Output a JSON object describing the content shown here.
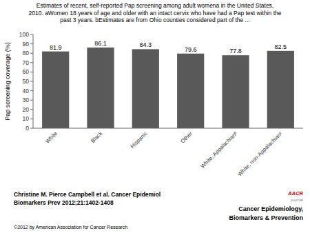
{
  "chart_data": {
    "type": "bar",
    "title": [
      "Estimates of recent, self-reported Pap screening among adult womena in the United States,",
      "2010. aWomen 18 years of age and older with an intact cervix who have had a Pap test within the",
      "past 3 years. bEstimates are from Ohio counties considered part of the ..."
    ],
    "categories": [
      "White",
      "Black",
      "Hispanic",
      "Other",
      "White, Appalachianᵇ",
      "White, non-Appalachianᶜ"
    ],
    "values": [
      81.9,
      86.1,
      84.3,
      79.6,
      77.8,
      82.5
    ],
    "color": "#595959",
    "ylabel": "Pap screening coverage (%)",
    "ylim": [
      0,
      100
    ],
    "yticks": [
      0,
      10,
      20,
      30,
      40,
      50,
      60,
      70,
      80,
      90,
      100
    ],
    "grid": false,
    "data_labels": true,
    "annotations": [
      "Christine M. Pierce Campbell et al. Cancer Epidemiol",
      "Biomarkers Prev 2012;21:1402-1408",
      "©2012 by American Association for Cancer Research",
      "AACR",
      "journal",
      "Cancer Epidemiology,",
      "Biomarkers & Prevention"
    ]
  }
}
